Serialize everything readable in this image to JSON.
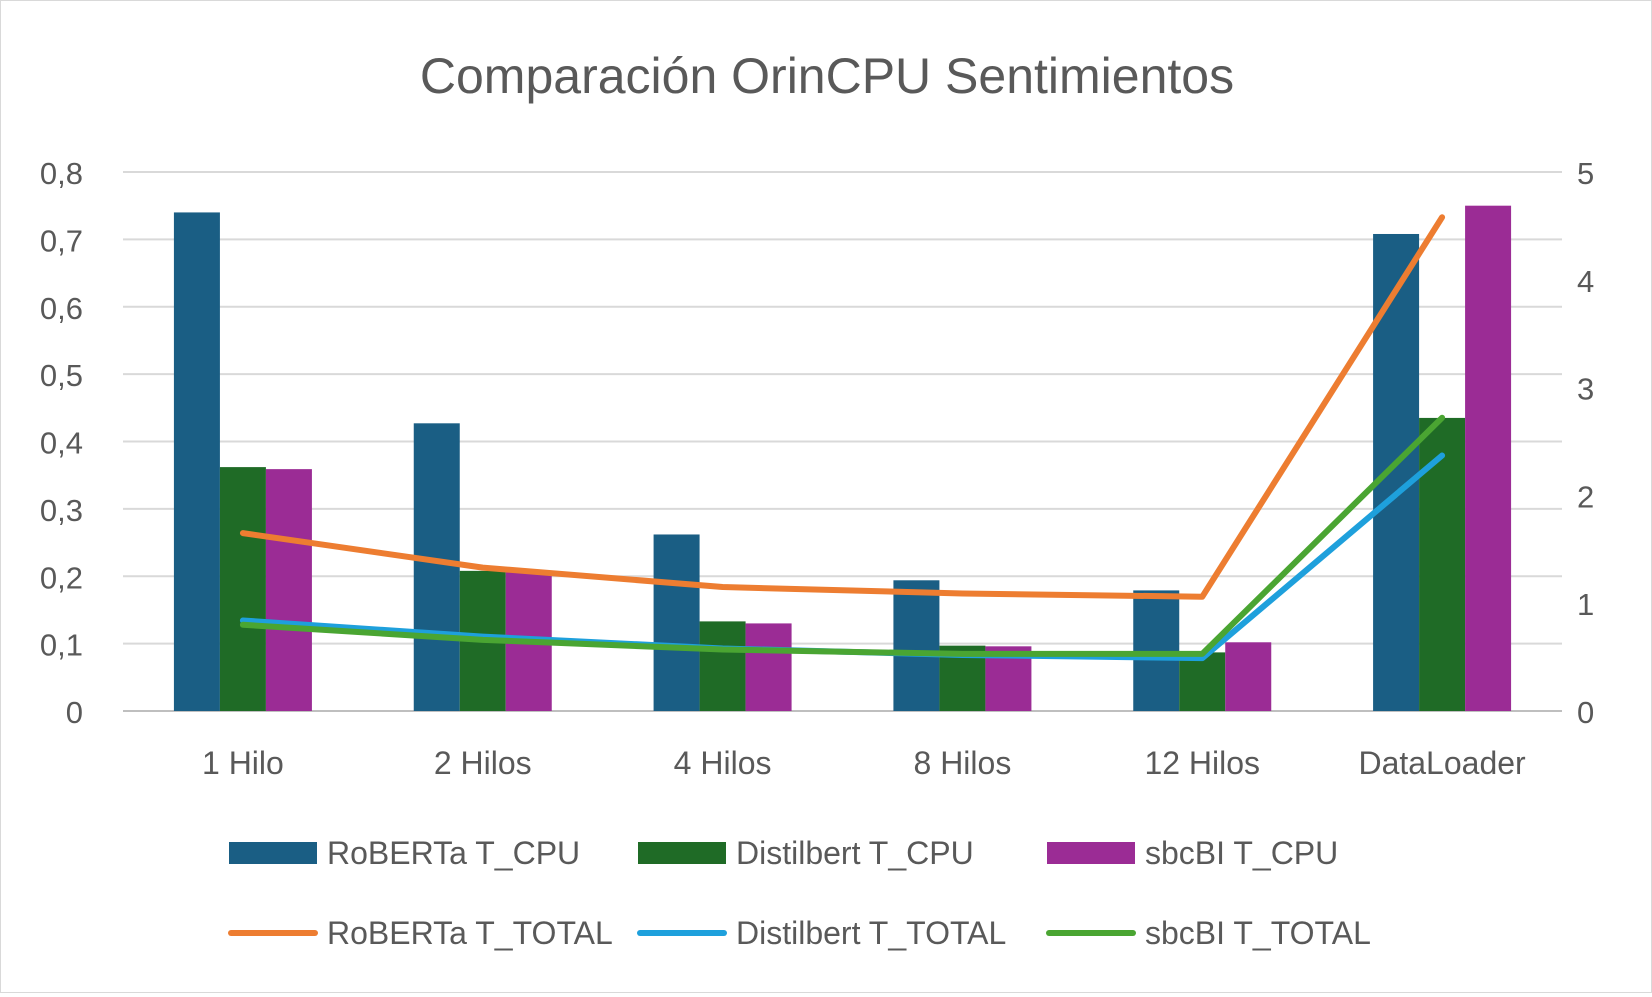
{
  "chart_data": {
    "type": "bar",
    "title": "Comparación OrinCPU Sentimientos",
    "categories": [
      "1 Hilo",
      "2 Hilos",
      "4 Hilos",
      "8 Hilos",
      "12 Hilos",
      "DataLoader"
    ],
    "y_left": {
      "ticks": [
        "0",
        "0,1",
        "0,2",
        "0,3",
        "0,4",
        "0,5",
        "0,6",
        "0,7",
        "0,8"
      ],
      "ylim": [
        0,
        0.8
      ]
    },
    "y_right": {
      "ticks": [
        "0",
        "1",
        "2",
        "3",
        "4",
        "5"
      ],
      "ylim": [
        0,
        5
      ]
    },
    "grid": true,
    "legend_position": "bottom",
    "bar_series": [
      {
        "name": "RoBERTa T_CPU",
        "color": "#1a5e84",
        "values": [
          0.74,
          0.427,
          0.262,
          0.194,
          0.179,
          0.708
        ]
      },
      {
        "name": "Distilbert T_CPU",
        "color": "#1f6b26",
        "values": [
          0.362,
          0.208,
          0.133,
          0.097,
          0.087,
          0.435
        ]
      },
      {
        "name": "sbcBI T_CPU",
        "color": "#9b2c95",
        "values": [
          0.359,
          0.208,
          0.13,
          0.096,
          0.102,
          0.75
        ]
      }
    ],
    "line_series": [
      {
        "name": "RoBERTa T_TOTAL",
        "color": "#ed7d31",
        "values": [
          1.65,
          1.33,
          1.15,
          1.09,
          1.06,
          4.58
        ]
      },
      {
        "name": "Distilbert T_TOTAL",
        "color": "#1ea0dc",
        "values": [
          0.84,
          0.69,
          0.58,
          0.52,
          0.49,
          2.37
        ]
      },
      {
        "name": "sbcBI T_TOTAL",
        "color": "#4aa532",
        "values": [
          0.8,
          0.66,
          0.57,
          0.53,
          0.53,
          2.72
        ]
      }
    ]
  }
}
